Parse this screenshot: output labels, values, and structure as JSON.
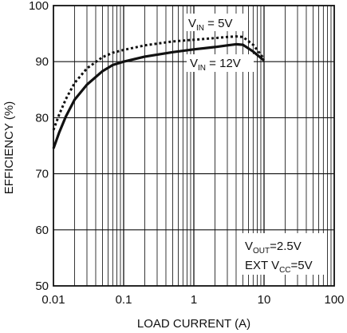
{
  "chart_data": {
    "type": "line",
    "xlabel": "LOAD CURRENT (A)",
    "ylabel": "EFFICIENCY (%)",
    "x_scale": "log",
    "xlim": [
      0.01,
      100
    ],
    "ylim": [
      50,
      100
    ],
    "grid": true,
    "x_ticks": [
      "0.01",
      "0.1",
      "1",
      "10",
      "100"
    ],
    "y_ticks": [
      "50",
      "60",
      "70",
      "80",
      "90",
      "100"
    ],
    "series": [
      {
        "name": "VIN = 5V",
        "style": "dotted",
        "x": [
          0.01,
          0.012,
          0.015,
          0.02,
          0.03,
          0.05,
          0.07,
          0.1,
          0.2,
          0.5,
          1,
          2,
          3,
          4,
          5,
          7,
          10
        ],
        "y": [
          77.8,
          80.5,
          83.3,
          86.2,
          88.8,
          90.8,
          91.6,
          92.1,
          92.9,
          93.6,
          93.9,
          94.2,
          94.4,
          94.5,
          94.4,
          93,
          90.5
        ]
      },
      {
        "name": "VIN = 12V",
        "style": "solid",
        "x": [
          0.01,
          0.012,
          0.015,
          0.02,
          0.03,
          0.05,
          0.07,
          0.1,
          0.2,
          0.5,
          1,
          2,
          3,
          4,
          5,
          7,
          10
        ],
        "y": [
          74.5,
          77.3,
          80.2,
          83.2,
          85.9,
          88.3,
          89.4,
          90,
          90.9,
          91.7,
          92.2,
          92.6,
          92.9,
          93.1,
          93,
          91.8,
          90.2
        ]
      }
    ],
    "annotations": {
      "vin5": {
        "prefix": "V",
        "sub": "IN",
        "suffix": " = 5V"
      },
      "vin12": {
        "prefix": "V",
        "sub": "IN",
        "suffix": " = 12V"
      },
      "vout": {
        "prefix": "V",
        "sub": "OUT",
        "suffix": "=2.5V"
      },
      "extvcc": {
        "prefix": "EXT V",
        "sub": "CC",
        "suffix": "=5V"
      }
    }
  }
}
